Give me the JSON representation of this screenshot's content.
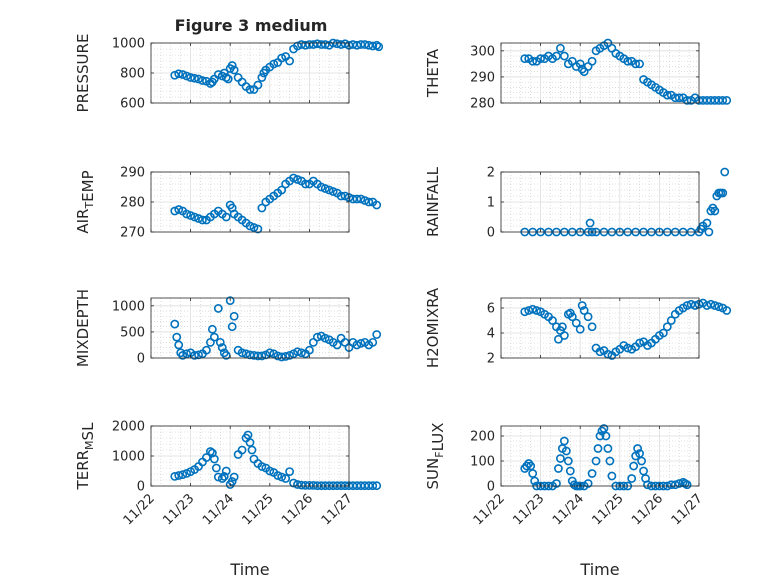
{
  "chart_data": {
    "title": "Figure 3 medium",
    "type": "scatter",
    "marker": "open-circle",
    "marker_color": "#0072BD",
    "grid": true,
    "minor_grid": true,
    "x_ticks": [
      "11/22",
      "11/23",
      "11/24",
      "11/25",
      "11/26",
      "11/27"
    ],
    "xlabel": "Time",
    "subplots": [
      {
        "ylabel_parts": [
          {
            "t": "PRESSURE"
          }
        ],
        "ylim": [
          600,
          1000
        ],
        "yticks": [
          600,
          800,
          1000
        ],
        "x": [
          0.6,
          0.7,
          0.8,
          0.9,
          1.0,
          1.1,
          1.2,
          1.3,
          1.4,
          1.5,
          1.55,
          1.6,
          1.7,
          1.8,
          1.85,
          1.9,
          1.95,
          2.0,
          2.05,
          2.1,
          2.2,
          2.3,
          2.4,
          2.5,
          2.6,
          2.7,
          2.8,
          2.85,
          2.9,
          3.0,
          3.1,
          3.2,
          3.3,
          3.4,
          3.5,
          3.6,
          3.7,
          3.8,
          3.9,
          4.0,
          4.1,
          4.2,
          4.3,
          4.4,
          4.5,
          4.6,
          4.7,
          4.8,
          4.9,
          5.0,
          5.1,
          5.2,
          5.3,
          5.4,
          5.5,
          5.6,
          5.7,
          5.75
        ],
        "y": [
          785,
          795,
          790,
          780,
          770,
          765,
          760,
          750,
          745,
          730,
          740,
          760,
          790,
          780,
          800,
          770,
          760,
          830,
          850,
          820,
          770,
          740,
          710,
          690,
          690,
          720,
          770,
          800,
          820,
          840,
          860,
          870,
          900,
          910,
          880,
          960,
          980,
          990,
          985,
          990,
          990,
          995,
          990,
          990,
          985,
          1000,
          995,
          990,
          995,
          985,
          990,
          985,
          990,
          990,
          985,
          980,
          985,
          975
        ]
      },
      {
        "ylabel_parts": [
          {
            "t": "THETA"
          }
        ],
        "ylim": [
          280,
          303
        ],
        "yticks": [
          280,
          290,
          300
        ],
        "x": [
          0.6,
          0.7,
          0.8,
          0.9,
          1.0,
          1.1,
          1.2,
          1.3,
          1.4,
          1.5,
          1.6,
          1.7,
          1.8,
          1.9,
          2.0,
          2.05,
          2.1,
          2.2,
          2.3,
          2.4,
          2.5,
          2.6,
          2.7,
          2.8,
          2.9,
          3.0,
          3.1,
          3.2,
          3.3,
          3.4,
          3.5,
          3.6,
          3.7,
          3.8,
          3.9,
          4.0,
          4.1,
          4.2,
          4.3,
          4.4,
          4.5,
          4.6,
          4.7,
          4.8,
          4.9,
          5.0,
          5.1,
          5.2,
          5.3,
          5.4,
          5.5,
          5.6,
          5.7
        ],
        "y": [
          297,
          297,
          296,
          296,
          297,
          297,
          298,
          297,
          298,
          301,
          298,
          295,
          296,
          294,
          295,
          293,
          292,
          294,
          296,
          300,
          301,
          302,
          303,
          301,
          299,
          298,
          297,
          296,
          296,
          295,
          295,
          289,
          288,
          287,
          286,
          285,
          284,
          283,
          283,
          282,
          282,
          282,
          281,
          281,
          282,
          281,
          281,
          281,
          281,
          281,
          281,
          281,
          281
        ]
      },
      {
        "ylabel_parts": [
          {
            "t": "AIR"
          },
          {
            "t": "T",
            "sub": true
          },
          {
            "t": "EMP"
          }
        ],
        "ylim": [
          270,
          290
        ],
        "yticks": [
          270,
          280,
          290
        ],
        "x": [
          0.6,
          0.7,
          0.8,
          0.9,
          1.0,
          1.1,
          1.2,
          1.3,
          1.4,
          1.5,
          1.6,
          1.7,
          1.8,
          1.9,
          2.0,
          2.05,
          2.1,
          2.2,
          2.3,
          2.4,
          2.5,
          2.6,
          2.7,
          2.8,
          2.9,
          3.0,
          3.1,
          3.2,
          3.3,
          3.4,
          3.5,
          3.6,
          3.7,
          3.8,
          3.9,
          4.0,
          4.1,
          4.2,
          4.3,
          4.4,
          4.5,
          4.6,
          4.7,
          4.8,
          4.9,
          5.0,
          5.1,
          5.2,
          5.3,
          5.4,
          5.5,
          5.6,
          5.7
        ],
        "y": [
          277,
          277.5,
          277,
          276,
          275.5,
          275,
          274.5,
          274,
          274,
          275,
          276,
          277,
          276,
          275,
          279,
          278,
          276,
          275,
          274,
          273,
          272,
          271.5,
          271,
          278,
          280,
          281,
          282,
          283,
          284,
          286,
          287,
          288,
          287.5,
          287,
          286,
          286,
          287,
          286,
          285,
          284.5,
          284,
          283.5,
          283,
          282,
          282,
          281.5,
          281,
          281,
          281,
          280.5,
          280,
          280,
          279
        ]
      },
      {
        "ylabel_parts": [
          {
            "t": "RAINFALL"
          }
        ],
        "ylim": [
          0,
          2
        ],
        "yticks": [
          0,
          1,
          2
        ],
        "x": [
          0.6,
          0.8,
          1.0,
          1.2,
          1.4,
          1.6,
          1.8,
          2.0,
          2.2,
          2.25,
          2.3,
          2.4,
          2.6,
          2.8,
          3.0,
          3.2,
          3.4,
          3.6,
          3.8,
          4.0,
          4.2,
          4.4,
          4.6,
          4.8,
          5.0,
          5.05,
          5.1,
          5.2,
          5.25,
          5.3,
          5.35,
          5.4,
          5.45,
          5.5,
          5.55,
          5.6,
          5.65
        ],
        "y": [
          0,
          0,
          0,
          0,
          0,
          0,
          0,
          0,
          0,
          0.3,
          0,
          0,
          0,
          0,
          0,
          0,
          0,
          0,
          0,
          0,
          0,
          0,
          0,
          0,
          0,
          0.1,
          0.2,
          0.3,
          0,
          0.7,
          0.8,
          0.7,
          1.2,
          1.3,
          1.3,
          1.3,
          2.0
        ]
      },
      {
        "ylabel_parts": [
          {
            "t": "MIXDEPTH"
          }
        ],
        "ylim": [
          0,
          1150
        ],
        "yticks": [
          0,
          500,
          1000
        ],
        "x": [
          0.6,
          0.65,
          0.7,
          0.75,
          0.8,
          0.9,
          1.0,
          1.1,
          1.2,
          1.3,
          1.4,
          1.5,
          1.55,
          1.6,
          1.7,
          1.75,
          1.8,
          1.85,
          1.9,
          2.0,
          2.05,
          2.1,
          2.2,
          2.3,
          2.4,
          2.5,
          2.6,
          2.7,
          2.8,
          2.9,
          3.0,
          3.1,
          3.2,
          3.3,
          3.4,
          3.5,
          3.6,
          3.7,
          3.8,
          3.9,
          4.0,
          4.1,
          4.2,
          4.3,
          4.4,
          4.5,
          4.6,
          4.7,
          4.8,
          4.9,
          5.0,
          5.1,
          5.2,
          5.3,
          5.4,
          5.5,
          5.6,
          5.7
        ],
        "y": [
          650,
          400,
          250,
          100,
          50,
          80,
          100,
          50,
          60,
          80,
          150,
          300,
          550,
          400,
          950,
          300,
          200,
          100,
          50,
          1100,
          600,
          800,
          150,
          100,
          80,
          60,
          50,
          40,
          40,
          60,
          100,
          80,
          40,
          20,
          30,
          50,
          80,
          120,
          100,
          80,
          150,
          300,
          400,
          420,
          380,
          350,
          300,
          250,
          380,
          300,
          200,
          300,
          250,
          280,
          300,
          250,
          300,
          450
        ]
      },
      {
        "ylabel_parts": [
          {
            "t": "H2OMIXRA"
          }
        ],
        "ylim": [
          2,
          6.8
        ],
        "yticks": [
          2,
          4,
          6
        ],
        "x": [
          0.6,
          0.7,
          0.8,
          0.9,
          1.0,
          1.1,
          1.2,
          1.3,
          1.4,
          1.45,
          1.5,
          1.55,
          1.6,
          1.7,
          1.75,
          1.8,
          1.9,
          2.0,
          2.05,
          2.1,
          2.2,
          2.3,
          2.4,
          2.5,
          2.6,
          2.7,
          2.8,
          2.9,
          3.0,
          3.1,
          3.2,
          3.3,
          3.4,
          3.5,
          3.6,
          3.7,
          3.8,
          3.9,
          4.0,
          4.1,
          4.2,
          4.3,
          4.4,
          4.5,
          4.6,
          4.7,
          4.8,
          4.9,
          5.0,
          5.1,
          5.2,
          5.3,
          5.4,
          5.5,
          5.6,
          5.7
        ],
        "y": [
          5.7,
          5.8,
          5.9,
          5.8,
          5.7,
          5.5,
          5.3,
          5.0,
          4.5,
          3.5,
          4.2,
          4.5,
          3.8,
          5.5,
          5.6,
          5.3,
          4.8,
          4.3,
          6.2,
          5.8,
          5.3,
          4.5,
          2.8,
          2.5,
          2.6,
          2.3,
          2.2,
          2.5,
          2.7,
          3.0,
          2.8,
          2.7,
          2.9,
          3.2,
          3.3,
          3.0,
          3.2,
          3.5,
          3.8,
          4.0,
          4.5,
          5.0,
          5.5,
          5.8,
          6.0,
          6.2,
          6.3,
          6.2,
          6.3,
          6.4,
          6.2,
          6.3,
          6.2,
          6.1,
          6.0,
          5.8
        ]
      },
      {
        "ylabel_parts": [
          {
            "t": "TERR"
          },
          {
            "t": "M",
            "sub": true
          },
          {
            "t": "SL"
          }
        ],
        "ylim": [
          0,
          2000
        ],
        "yticks": [
          0,
          1000,
          2000
        ],
        "x": [
          0.6,
          0.7,
          0.8,
          0.9,
          1.0,
          1.1,
          1.2,
          1.3,
          1.4,
          1.5,
          1.55,
          1.6,
          1.65,
          1.7,
          1.8,
          1.85,
          1.9,
          2.0,
          2.05,
          2.1,
          2.2,
          2.3,
          2.4,
          2.45,
          2.5,
          2.55,
          2.6,
          2.7,
          2.8,
          2.9,
          3.0,
          3.1,
          3.2,
          3.3,
          3.4,
          3.5,
          3.6,
          3.7,
          3.8,
          3.9,
          4.0,
          4.1,
          4.2,
          4.3,
          4.4,
          4.5,
          4.6,
          4.7,
          4.8,
          4.9,
          5.0,
          5.1,
          5.2,
          5.3,
          5.4,
          5.5,
          5.6,
          5.7
        ],
        "y": [
          320,
          350,
          380,
          420,
          480,
          550,
          650,
          800,
          950,
          1150,
          1100,
          900,
          600,
          300,
          250,
          320,
          500,
          50,
          150,
          300,
          1050,
          1200,
          1600,
          1700,
          1450,
          1200,
          900,
          750,
          650,
          600,
          500,
          450,
          350,
          300,
          250,
          480,
          100,
          50,
          30,
          20,
          20,
          20,
          10,
          10,
          10,
          10,
          10,
          10,
          10,
          10,
          10,
          10,
          10,
          10,
          10,
          10,
          10,
          10
        ]
      },
      {
        "ylabel_parts": [
          {
            "t": "SUN"
          },
          {
            "t": "F",
            "sub": true
          },
          {
            "t": "LUX"
          }
        ],
        "ylim": [
          0,
          240
        ],
        "yticks": [
          0,
          100,
          200
        ],
        "x": [
          0.6,
          0.65,
          0.7,
          0.75,
          0.8,
          0.85,
          0.9,
          1.0,
          1.1,
          1.2,
          1.3,
          1.4,
          1.45,
          1.5,
          1.55,
          1.6,
          1.65,
          1.7,
          1.75,
          1.8,
          1.85,
          1.9,
          1.95,
          2.0,
          2.1,
          2.2,
          2.3,
          2.4,
          2.45,
          2.5,
          2.55,
          2.6,
          2.65,
          2.7,
          2.75,
          2.8,
          2.9,
          3.0,
          3.1,
          3.2,
          3.3,
          3.35,
          3.4,
          3.45,
          3.5,
          3.55,
          3.6,
          3.65,
          3.7,
          3.8,
          3.9,
          4.0,
          4.1,
          4.2,
          4.3,
          4.4,
          4.5,
          4.6,
          4.65,
          4.7
        ],
        "y": [
          70,
          80,
          90,
          80,
          50,
          20,
          0,
          0,
          0,
          0,
          0,
          10,
          70,
          110,
          150,
          180,
          140,
          100,
          60,
          20,
          5,
          0,
          0,
          0,
          0,
          10,
          50,
          100,
          150,
          200,
          220,
          230,
          200,
          150,
          100,
          40,
          0,
          0,
          0,
          0,
          30,
          80,
          120,
          150,
          130,
          100,
          60,
          30,
          5,
          0,
          0,
          0,
          0,
          0,
          5,
          5,
          10,
          15,
          10,
          5
        ]
      }
    ]
  }
}
